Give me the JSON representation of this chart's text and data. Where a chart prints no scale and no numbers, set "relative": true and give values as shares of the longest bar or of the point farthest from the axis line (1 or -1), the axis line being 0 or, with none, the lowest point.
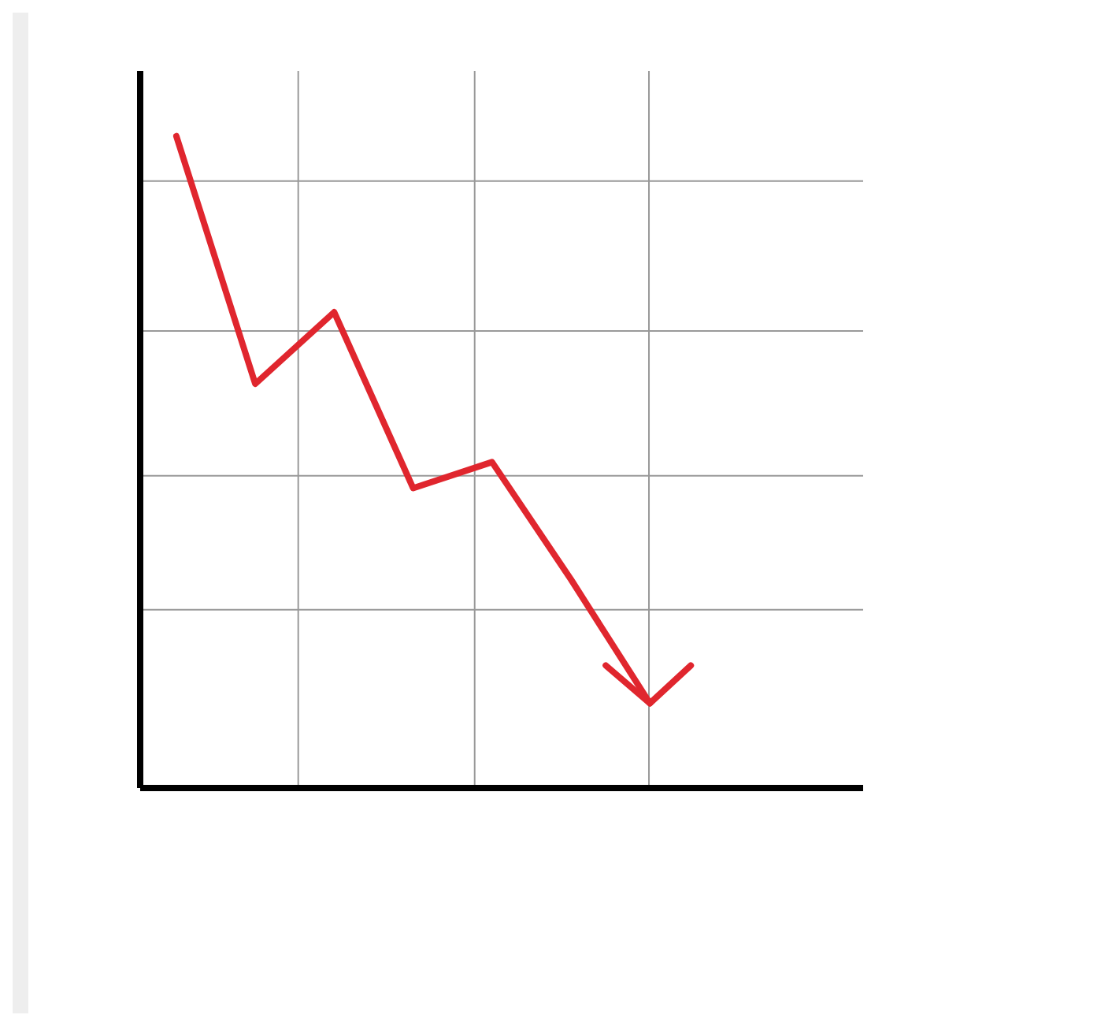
{
  "chart_data": {
    "type": "line",
    "relative": true,
    "categories": [
      null,
      null,
      null,
      null,
      null,
      null,
      null
    ],
    "grid": true,
    "series": [
      {
        "color": "#e0262e",
        "values": [
          1,
          0.62,
          0.73,
          0.46,
          0.5,
          0.32,
          0.13
        ]
      }
    ]
  }
}
